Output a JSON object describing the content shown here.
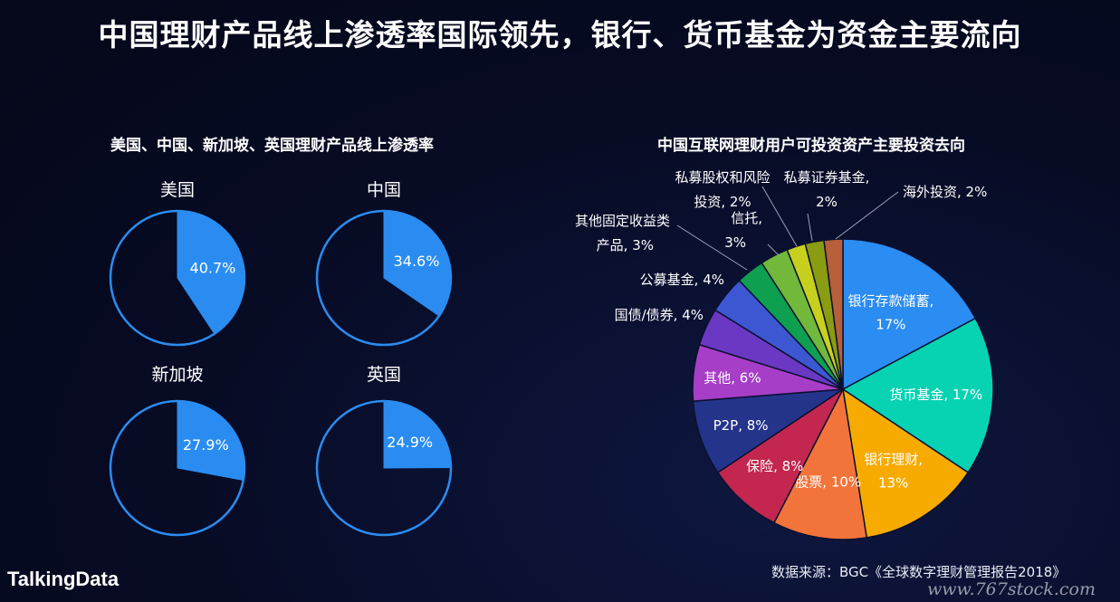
{
  "title": "中国理财产品线上渗透率国际领先，银行、货币基金为资金主要流向",
  "logo_text": "TalkingData",
  "source_text": "数据来源：BGC《全球数字理财管理报告2018》",
  "watermark_text": "www.767stock.com",
  "colors": {
    "accent": "#2a8cf0",
    "outline": "#2a8cf0"
  },
  "chart_data": [
    {
      "type": "pie",
      "title": "美国、中国、新加坡、英国理财产品线上渗透率",
      "panels": [
        {
          "name": "美国",
          "value": 40.7,
          "label": "40.7%"
        },
        {
          "name": "中国",
          "value": 34.6,
          "label": "34.6%"
        },
        {
          "name": "新加坡",
          "value": 27.9,
          "label": "27.9%"
        },
        {
          "name": "英国",
          "value": 24.9,
          "label": "24.9%"
        }
      ]
    },
    {
      "type": "pie",
      "title": "中国互联网理财用户可投资资产主要投资去向",
      "slices": [
        {
          "line1": "银行存款储蓄,",
          "line2": "17%",
          "value": 17,
          "color": "#2b8cf2"
        },
        {
          "line1": "货币基金, 17%",
          "line2": "",
          "value": 17,
          "color": "#07d3b3"
        },
        {
          "line1": "银行理财,",
          "line2": "13%",
          "value": 13,
          "color": "#f7ab00"
        },
        {
          "line1": "股票, 10%",
          "line2": "",
          "value": 10,
          "color": "#f3743a"
        },
        {
          "line1": "保险, 8%",
          "line2": "",
          "value": 8,
          "color": "#c3264e"
        },
        {
          "line1": "P2P, 8%",
          "line2": "",
          "value": 8,
          "color": "#24348a"
        },
        {
          "line1": "其他, 6%",
          "line2": "",
          "value": 6,
          "color": "#a63ec7"
        },
        {
          "line1": "国债/债券, 4%",
          "line2": "",
          "value": 4,
          "color": "#6a38c2"
        },
        {
          "line1": "公募基金, 4%",
          "line2": "",
          "value": 4,
          "color": "#3d57d3"
        },
        {
          "line1": "其他固定收益类",
          "line2": "产品, 3%",
          "value": 3,
          "color": "#0e9f51"
        },
        {
          "line1": "信托,",
          "line2": "3%",
          "value": 3,
          "color": "#72b83b"
        },
        {
          "line1": "私募股权和风险",
          "line2": "投资, 2%",
          "value": 2,
          "color": "#c7d11d"
        },
        {
          "line1": "私募证券基金,",
          "line2": "2%",
          "value": 2,
          "color": "#8a9c12"
        },
        {
          "line1": "海外投资, 2%",
          "line2": "",
          "value": 2,
          "color": "#b85f3c"
        }
      ]
    }
  ]
}
